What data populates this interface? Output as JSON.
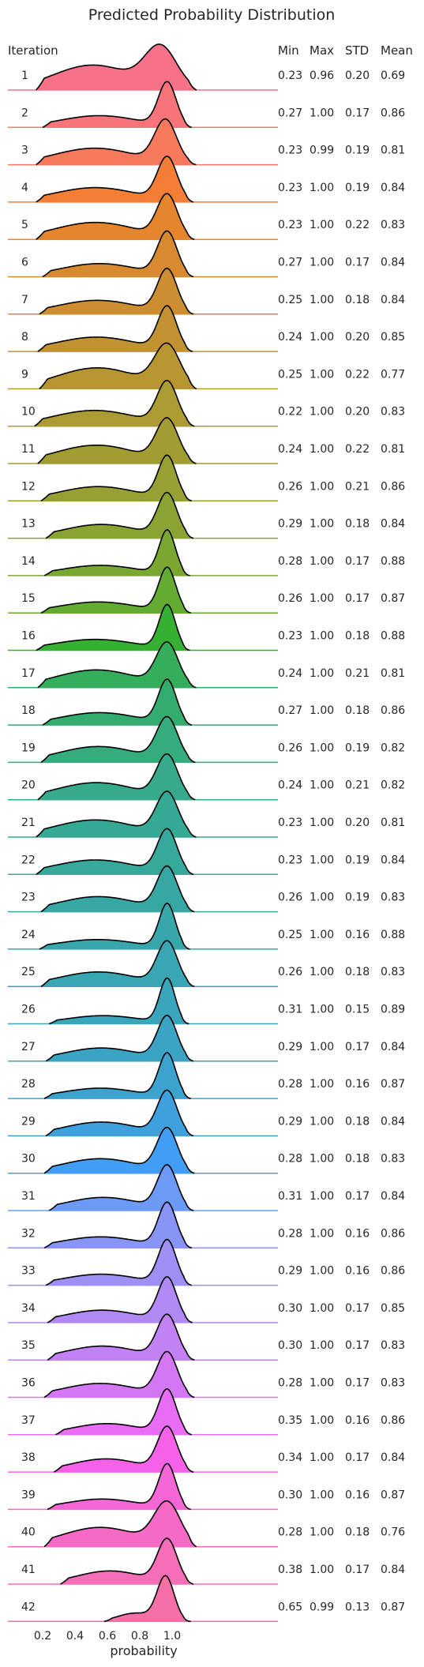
{
  "chart_data": {
    "type": "ridgeline",
    "title": "Predicted Probability Distribution",
    "xlabel": "probability",
    "x_ticks": [
      0.2,
      0.4,
      0.6,
      0.8,
      1.0
    ],
    "x_tick_labels": [
      "0.2",
      "0.4",
      "0.6",
      "0.8",
      "1.0"
    ],
    "xlim": [
      0.1,
      1.15
    ],
    "stat_headers": {
      "iteration": "Iteration",
      "min": "Min",
      "max": "Max",
      "std": "STD",
      "mean": "Mean"
    },
    "rows": [
      {
        "label": "1",
        "min": "0.23",
        "max": "0.96",
        "std": "0.20",
        "mean": "0.69",
        "color": "#f77189"
      },
      {
        "label": "2",
        "min": "0.27",
        "max": "1.00",
        "std": "0.17",
        "mean": "0.86",
        "color": "#f7757a"
      },
      {
        "label": "3",
        "min": "0.23",
        "max": "0.99",
        "std": "0.19",
        "mean": "0.81",
        "color": "#f77a5c"
      },
      {
        "label": "4",
        "min": "0.23",
        "max": "1.00",
        "std": "0.19",
        "mean": "0.84",
        "color": "#f47e36"
      },
      {
        "label": "5",
        "min": "0.23",
        "max": "1.00",
        "std": "0.22",
        "mean": "0.83",
        "color": "#e5852d"
      },
      {
        "label": "6",
        "min": "0.27",
        "max": "1.00",
        "std": "0.17",
        "mean": "0.84",
        "color": "#d98a31"
      },
      {
        "label": "7",
        "min": "0.25",
        "max": "1.00",
        "std": "0.18",
        "mean": "0.84",
        "color": "#cd8e31"
      },
      {
        "label": "8",
        "min": "0.24",
        "max": "1.00",
        "std": "0.20",
        "mean": "0.85",
        "color": "#c29232"
      },
      {
        "label": "9",
        "min": "0.25",
        "max": "1.00",
        "std": "0.22",
        "mean": "0.77",
        "color": "#b79632"
      },
      {
        "label": "10",
        "min": "0.22",
        "max": "1.00",
        "std": "0.20",
        "mean": "0.83",
        "color": "#ac9a32"
      },
      {
        "label": "11",
        "min": "0.24",
        "max": "1.00",
        "std": "0.22",
        "mean": "0.81",
        "color": "#a19d32"
      },
      {
        "label": "12",
        "min": "0.26",
        "max": "1.00",
        "std": "0.21",
        "mean": "0.86",
        "color": "#97a032"
      },
      {
        "label": "13",
        "min": "0.29",
        "max": "1.00",
        "std": "0.18",
        "mean": "0.84",
        "color": "#8aa332"
      },
      {
        "label": "14",
        "min": "0.28",
        "max": "1.00",
        "std": "0.17",
        "mean": "0.88",
        "color": "#7aa732"
      },
      {
        "label": "15",
        "min": "0.26",
        "max": "1.00",
        "std": "0.17",
        "mean": "0.87",
        "color": "#64ab32"
      },
      {
        "label": "16",
        "min": "0.23",
        "max": "1.00",
        "std": "0.18",
        "mean": "0.88",
        "color": "#35b032"
      },
      {
        "label": "17",
        "min": "0.24",
        "max": "1.00",
        "std": "0.21",
        "mean": "0.81",
        "color": "#34ae5a"
      },
      {
        "label": "18",
        "min": "0.27",
        "max": "1.00",
        "std": "0.18",
        "mean": "0.86",
        "color": "#35ac6f"
      },
      {
        "label": "19",
        "min": "0.26",
        "max": "1.00",
        "std": "0.19",
        "mean": "0.82",
        "color": "#35ab7e"
      },
      {
        "label": "20",
        "min": "0.24",
        "max": "1.00",
        "std": "0.21",
        "mean": "0.82",
        "color": "#36aa8a"
      },
      {
        "label": "21",
        "min": "0.23",
        "max": "1.00",
        "std": "0.20",
        "mean": "0.81",
        "color": "#36a994"
      },
      {
        "label": "22",
        "min": "0.23",
        "max": "1.00",
        "std": "0.19",
        "mean": "0.84",
        "color": "#37a89c"
      },
      {
        "label": "23",
        "min": "0.26",
        "max": "1.00",
        "std": "0.19",
        "mean": "0.83",
        "color": "#37a7a4"
      },
      {
        "label": "24",
        "min": "0.25",
        "max": "1.00",
        "std": "0.16",
        "mean": "0.88",
        "color": "#38a7ab"
      },
      {
        "label": "25",
        "min": "0.26",
        "max": "1.00",
        "std": "0.18",
        "mean": "0.83",
        "color": "#39a6b3"
      },
      {
        "label": "26",
        "min": "0.31",
        "max": "1.00",
        "std": "0.15",
        "mean": "0.89",
        "color": "#3aa5bb"
      },
      {
        "label": "27",
        "min": "0.29",
        "max": "1.00",
        "std": "0.17",
        "mean": "0.84",
        "color": "#3ba4c4"
      },
      {
        "label": "28",
        "min": "0.28",
        "max": "1.00",
        "std": "0.16",
        "mean": "0.87",
        "color": "#3ca3cf"
      },
      {
        "label": "29",
        "min": "0.29",
        "max": "1.00",
        "std": "0.18",
        "mean": "0.84",
        "color": "#3ea1dd"
      },
      {
        "label": "30",
        "min": "0.28",
        "max": "1.00",
        "std": "0.18",
        "mean": "0.83",
        "color": "#429ef4"
      },
      {
        "label": "31",
        "min": "0.31",
        "max": "1.00",
        "std": "0.17",
        "mean": "0.84",
        "color": "#6c9af4"
      },
      {
        "label": "32",
        "min": "0.28",
        "max": "1.00",
        "std": "0.16",
        "mean": "0.86",
        "color": "#8895f4"
      },
      {
        "label": "33",
        "min": "0.29",
        "max": "1.00",
        "std": "0.16",
        "mean": "0.86",
        "color": "#9e8ff4"
      },
      {
        "label": "34",
        "min": "0.30",
        "max": "1.00",
        "std": "0.17",
        "mean": "0.85",
        "color": "#b089f4"
      },
      {
        "label": "35",
        "min": "0.30",
        "max": "1.00",
        "std": "0.17",
        "mean": "0.83",
        "color": "#c281f4"
      },
      {
        "label": "36",
        "min": "0.28",
        "max": "1.00",
        "std": "0.17",
        "mean": "0.83",
        "color": "#d477f4"
      },
      {
        "label": "37",
        "min": "0.35",
        "max": "1.00",
        "std": "0.16",
        "mean": "0.86",
        "color": "#e86cf4"
      },
      {
        "label": "38",
        "min": "0.34",
        "max": "1.00",
        "std": "0.17",
        "mean": "0.84",
        "color": "#f562e8"
      },
      {
        "label": "39",
        "min": "0.30",
        "max": "1.00",
        "std": "0.16",
        "mean": "0.87",
        "color": "#f566d6"
      },
      {
        "label": "40",
        "min": "0.28",
        "max": "1.00",
        "std": "0.18",
        "mean": "0.76",
        "color": "#f56ac6"
      },
      {
        "label": "41",
        "min": "0.38",
        "max": "1.00",
        "std": "0.17",
        "mean": "0.84",
        "color": "#f66eb7"
      },
      {
        "label": "42",
        "min": "0.65",
        "max": "0.99",
        "std": "0.13",
        "mean": "0.87",
        "color": "#f670a8"
      }
    ]
  }
}
